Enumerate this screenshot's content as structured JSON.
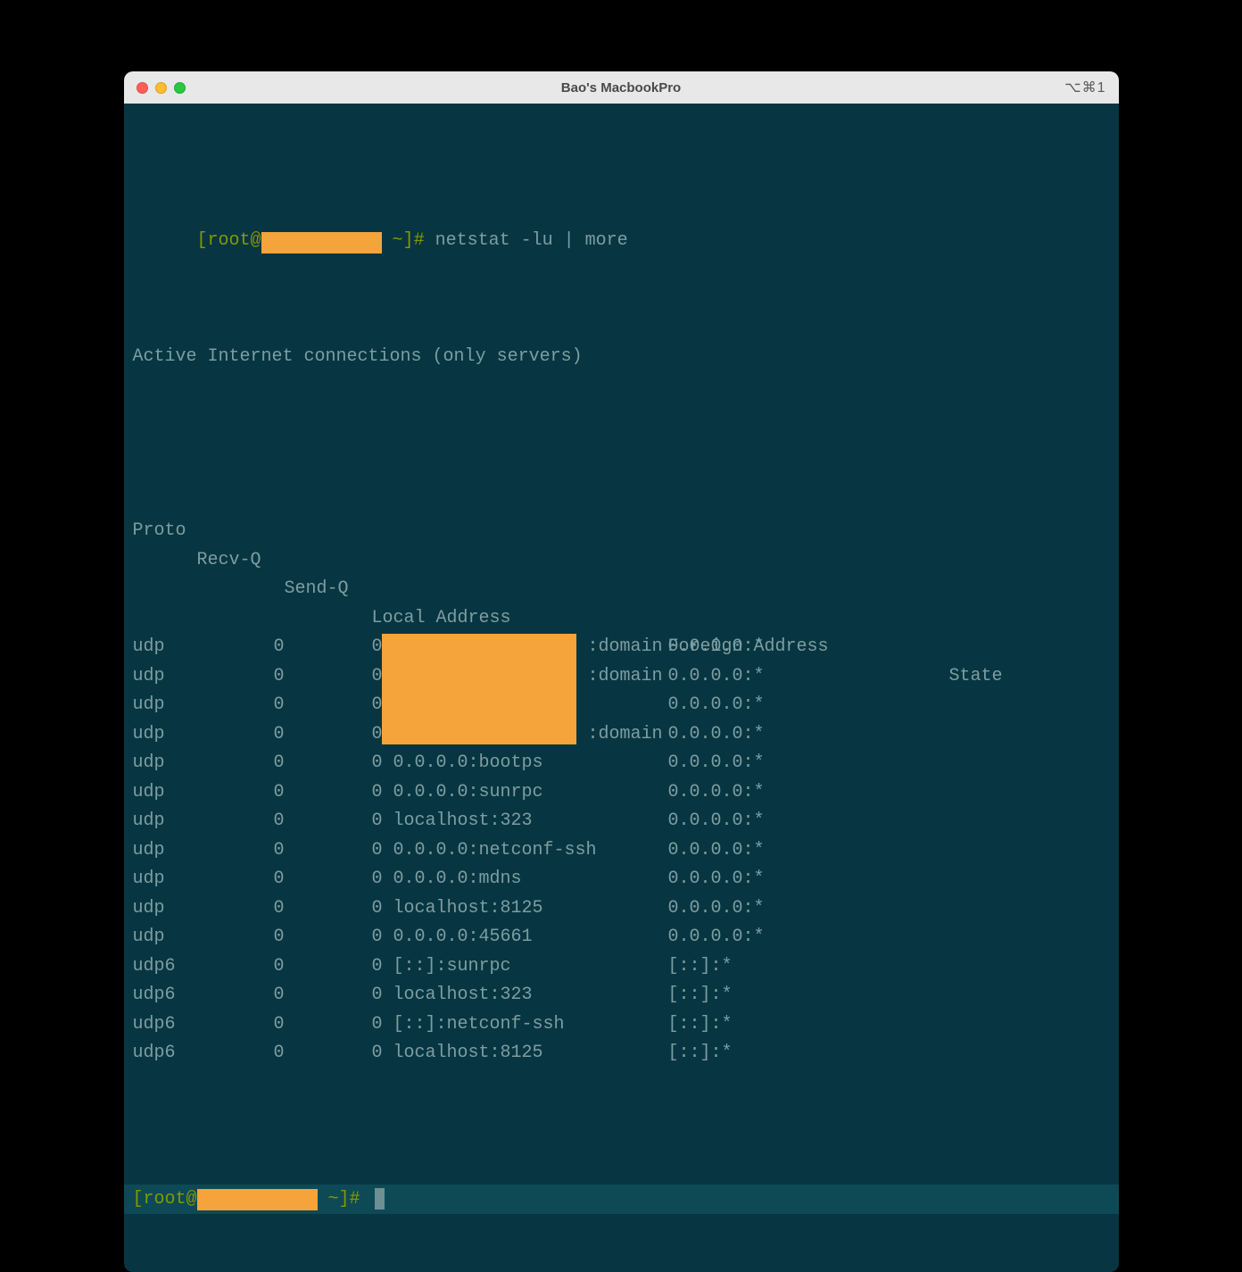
{
  "window": {
    "title": "Bao's MacbookPro",
    "tab_indicator": "⌥⌘1"
  },
  "colors": {
    "terminal_bg": "#073642",
    "text": "#7d9da1",
    "prompt_green": "#859900",
    "redaction": "#f5a33b",
    "active_row_bg": "#0d4a56",
    "titlebar_bg": "#e8e8e9",
    "traffic_red": "#ff5f57",
    "traffic_yellow": "#febc2e",
    "traffic_green": "#28c840"
  },
  "prompt1": {
    "open": "[",
    "user": "root@",
    "close_path": " ~]",
    "hash": "# ",
    "command": "netstat -lu | more"
  },
  "output_header1": "Active Internet connections (only servers)",
  "columns": {
    "proto": "Proto",
    "recvq": "Recv-Q",
    "sendq": "Send-Q",
    "local": "Local Address",
    "foreign": "Foreign Address",
    "state": "State"
  },
  "rows": [
    {
      "proto": "udp",
      "recvq": "0",
      "sendq": "0",
      "local_redacted": true,
      "local_suffix": ":domain",
      "foreign": "0.0.0.0:*",
      "state": ""
    },
    {
      "proto": "udp",
      "recvq": "0",
      "sendq": "0",
      "local_redacted": true,
      "local_suffix": ":domain",
      "foreign": "0.0.0.0:*",
      "state": ""
    },
    {
      "proto": "udp",
      "recvq": "0",
      "sendq": "0",
      "local_redacted": true,
      "local_suffix": "",
      "foreign": "0.0.0.0:*",
      "state": ""
    },
    {
      "proto": "udp",
      "recvq": "0",
      "sendq": "0",
      "local_redacted": true,
      "local_suffix": ":domain",
      "foreign": "0.0.0.0:*",
      "state": ""
    },
    {
      "proto": "udp",
      "recvq": "0",
      "sendq": "0",
      "local": "0.0.0.0:bootps",
      "foreign": "0.0.0.0:*",
      "state": ""
    },
    {
      "proto": "udp",
      "recvq": "0",
      "sendq": "0",
      "local": "0.0.0.0:sunrpc",
      "foreign": "0.0.0.0:*",
      "state": ""
    },
    {
      "proto": "udp",
      "recvq": "0",
      "sendq": "0",
      "local": "localhost:323",
      "foreign": "0.0.0.0:*",
      "state": ""
    },
    {
      "proto": "udp",
      "recvq": "0",
      "sendq": "0",
      "local": "0.0.0.0:netconf-ssh",
      "foreign": "0.0.0.0:*",
      "state": ""
    },
    {
      "proto": "udp",
      "recvq": "0",
      "sendq": "0",
      "local": "0.0.0.0:mdns",
      "foreign": "0.0.0.0:*",
      "state": ""
    },
    {
      "proto": "udp",
      "recvq": "0",
      "sendq": "0",
      "local": "localhost:8125",
      "foreign": "0.0.0.0:*",
      "state": ""
    },
    {
      "proto": "udp",
      "recvq": "0",
      "sendq": "0",
      "local": "0.0.0.0:45661",
      "foreign": "0.0.0.0:*",
      "state": ""
    },
    {
      "proto": "udp6",
      "recvq": "0",
      "sendq": "0",
      "local": "[::]:sunrpc",
      "foreign": "[::]:*",
      "state": ""
    },
    {
      "proto": "udp6",
      "recvq": "0",
      "sendq": "0",
      "local": "localhost:323",
      "foreign": "[::]:*",
      "state": ""
    },
    {
      "proto": "udp6",
      "recvq": "0",
      "sendq": "0",
      "local": "[::]:netconf-ssh",
      "foreign": "[::]:*",
      "state": ""
    },
    {
      "proto": "udp6",
      "recvq": "0",
      "sendq": "0",
      "local": "localhost:8125",
      "foreign": "[::]:*",
      "state": ""
    }
  ],
  "prompt2": {
    "open": "[",
    "user": "root@",
    "close_path": " ~]",
    "hash": "# "
  },
  "redaction_sizes": {
    "hostname_w": 135,
    "hostname_h": 24,
    "local_block_w": 218
  }
}
